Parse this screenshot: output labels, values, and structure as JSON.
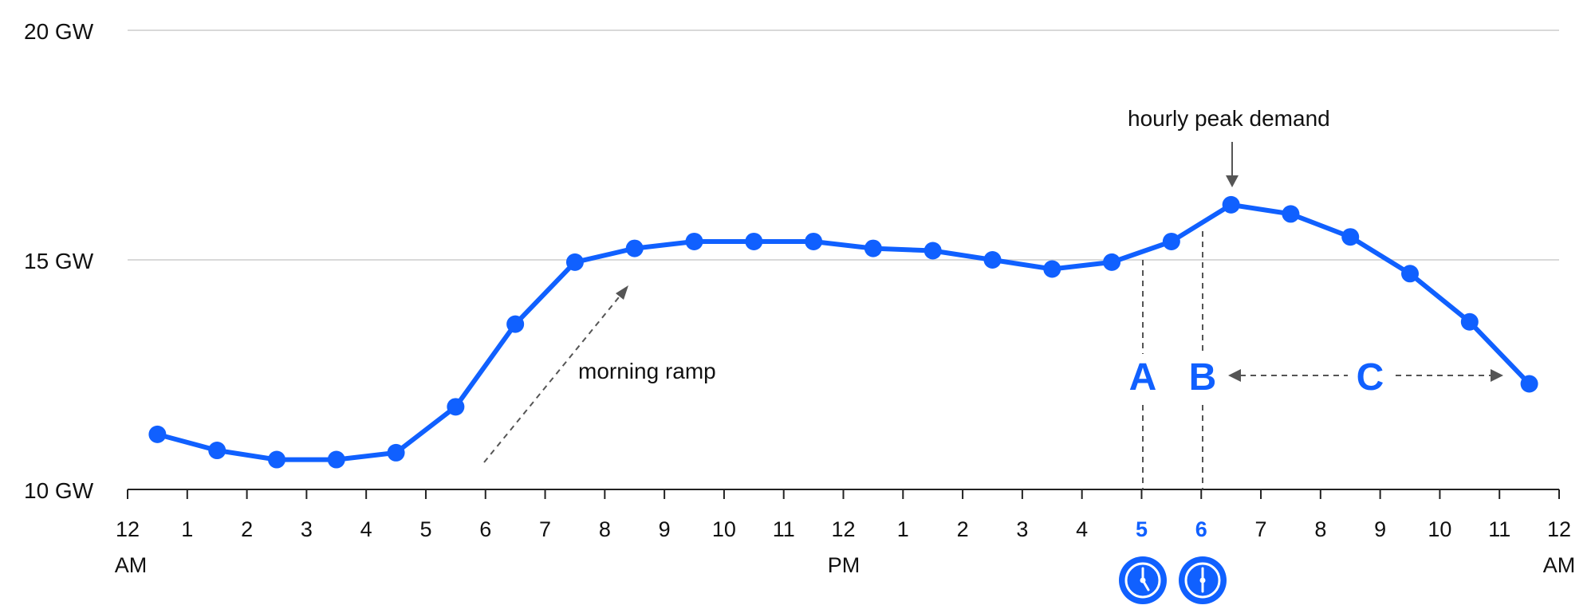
{
  "chart_data": {
    "type": "line",
    "title": "",
    "xlabel": "",
    "ylabel": "",
    "ylim": [
      10,
      20
    ],
    "y_ticks": [
      "10 GW",
      "15 GW",
      "20 GW"
    ],
    "x_tick_labels": [
      "12",
      "1",
      "2",
      "3",
      "4",
      "5",
      "6",
      "7",
      "8",
      "9",
      "10",
      "11",
      "12",
      "1",
      "2",
      "3",
      "4",
      "5",
      "6",
      "7",
      "8",
      "9",
      "10",
      "11",
      "12"
    ],
    "x_period_labels": [
      "AM",
      "PM",
      "AM"
    ],
    "highlighted_ticks": [
      17,
      18
    ],
    "grid": true,
    "series": [
      {
        "color": "#1060ff",
        "x": [
          0.5,
          1.5,
          2.5,
          3.5,
          4.5,
          5.5,
          6.5,
          7.5,
          8.5,
          9.5,
          10.5,
          11.5,
          12.5,
          13.5,
          14.5,
          15.5,
          16.5,
          17.5,
          18.5,
          19.5,
          20.5,
          21.5,
          22.5,
          23.5
        ],
        "values": [
          11.2,
          10.85,
          10.65,
          10.65,
          10.8,
          11.8,
          13.6,
          14.95,
          15.25,
          15.4,
          15.4,
          15.4,
          15.25,
          15.2,
          15.0,
          14.8,
          14.95,
          15.4,
          16.2,
          16.0,
          15.5,
          14.7,
          13.65,
          12.3
        ]
      }
    ],
    "annotations": {
      "peak_label": "hourly peak demand",
      "ramp_label": "morning ramp",
      "marker_a": "A",
      "marker_b": "B",
      "marker_c": "C"
    }
  },
  "icons": [
    "clock-icon-5",
    "clock-icon-6"
  ]
}
